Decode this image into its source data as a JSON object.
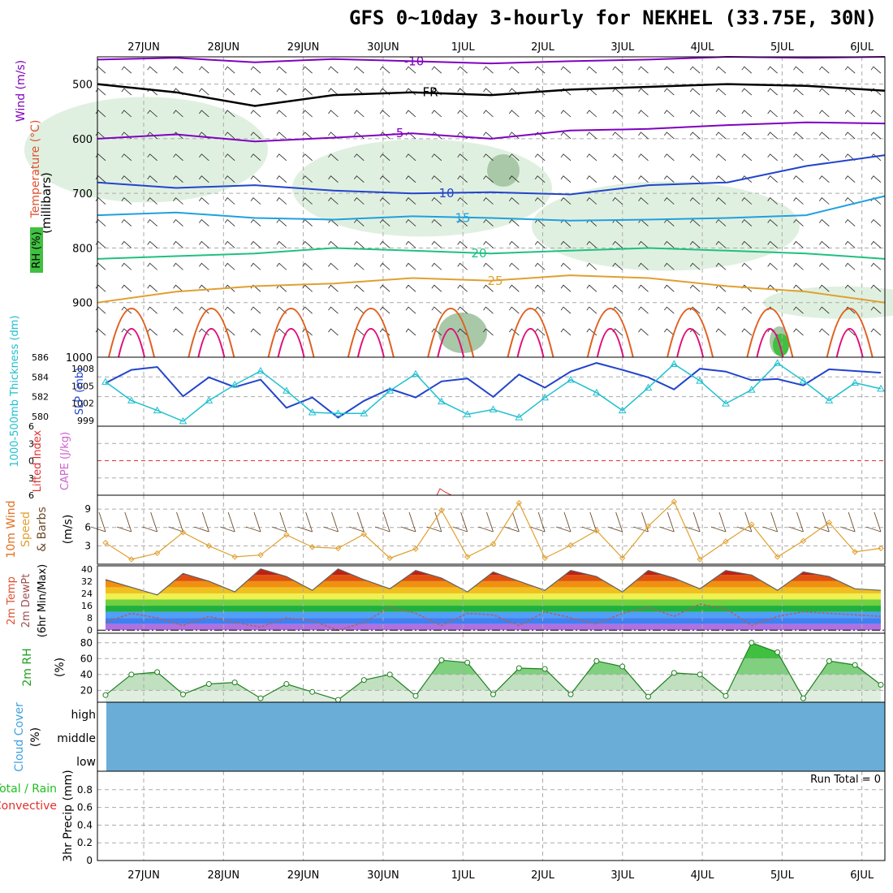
{
  "title": "GFS 0~10day 3-hourly for NEKHEL (33.75E, 30N)",
  "colors": {
    "purple": "#8000c0",
    "blue": "#2244cc",
    "lightblue": "#20a0e0",
    "green": "#20c080",
    "orange": "#e0a030",
    "darkorange": "#e06020",
    "magenta": "#e0107a",
    "cyan": "#20c0d0",
    "rhfill": "#d8ecd8",
    "cloud": "#6aaed8",
    "grid": "#aaaaaa"
  },
  "chart_data": [
    {
      "type": "line",
      "panel": "upper-air cross-section",
      "ylabel": "(millibars)",
      "y_side_labels": [
        "Wind (m/s)",
        "Temperature (°C)",
        "RH (%)"
      ],
      "yticks": [
        500,
        600,
        700,
        800,
        900,
        1000
      ],
      "ylim": [
        1000,
        450
      ],
      "x_day_labels": [
        "27JUN",
        "28JUN",
        "29JUN",
        "30JUN",
        "1JUL",
        "2JUL",
        "3JUL",
        "4JUL",
        "5JUL",
        "6JUL"
      ],
      "isotherms": [
        {
          "name": "-5",
          "pressure": [
            600,
            592,
            605,
            598,
            590,
            600,
            585,
            582,
            575,
            570,
            572
          ]
        },
        {
          "name": "-10",
          "pressure": [
            455,
            452,
            460,
            454,
            458,
            462,
            458,
            455,
            450,
            452,
            450
          ]
        },
        {
          "name": "FR",
          "pressure": [
            500,
            515,
            540,
            520,
            515,
            520,
            510,
            505,
            500,
            503,
            512
          ]
        },
        {
          "name": "10",
          "pressure": [
            680,
            690,
            685,
            695,
            700,
            698,
            702,
            685,
            680,
            650,
            630
          ]
        },
        {
          "name": "15",
          "pressure": [
            740,
            735,
            745,
            748,
            742,
            745,
            750,
            748,
            745,
            740,
            705
          ]
        },
        {
          "name": "20",
          "pressure": [
            820,
            815,
            810,
            800,
            805,
            810,
            805,
            800,
            805,
            810,
            820
          ]
        },
        {
          "name": "25",
          "pressure": [
            900,
            880,
            870,
            865,
            855,
            860,
            850,
            855,
            870,
            880,
            900
          ]
        }
      ]
    },
    {
      "type": "line",
      "panel": "thickness-slp",
      "y_side_labels": [
        "1000-500mb Thickness (dm)",
        "SLP (mb)"
      ],
      "thickness_ticks": [
        580,
        582,
        584,
        586
      ],
      "slp_ticks": [
        999,
        1002,
        1005,
        1008
      ],
      "slp": [
        1005.5,
        1007.8,
        1008.3,
        1003.2,
        1006.5,
        1004.8,
        1006.1,
        1001.2,
        1003.0,
        999.5,
        1002.4,
        1004.5,
        1003.0,
        1005.8,
        1006.3,
        1003.1,
        1007.0,
        1004.7,
        1007.5,
        1009.0,
        1007.8,
        1006.5,
        1004.4,
        1008.0,
        1007.5,
        1006.0,
        1006.2,
        1005.1,
        1007.9,
        1007.6,
        1007.3
      ],
      "thickness": [
        583.5,
        581.6,
        580.6,
        579.5,
        581.6,
        583.2,
        584.6,
        582.6,
        580.4,
        580.3,
        580.3,
        582.6,
        584.3,
        581.5,
        580.2,
        580.7,
        579.9,
        581.9,
        583.7,
        582.4,
        580.6,
        582.9,
        585.3,
        583.6,
        581.3,
        582.7,
        585.4,
        583.6,
        581.6,
        583.4,
        582.8
      ]
    },
    {
      "type": "line",
      "panel": "lifted-index-cape",
      "y_side_labels": [
        "Lifted Index",
        "CAPE (J/kg)"
      ],
      "yticks": [
        -6,
        -3,
        0,
        3,
        6
      ],
      "cape": [
        0,
        0,
        0,
        0,
        0,
        0,
        0,
        0,
        0,
        0,
        0,
        0,
        0,
        0,
        0,
        0,
        0,
        0,
        0,
        0,
        0,
        0,
        0,
        0,
        0,
        0,
        0,
        0,
        0,
        0,
        0
      ]
    },
    {
      "type": "line",
      "panel": "10m-wind",
      "y_side_labels": [
        "10m Wind Speed & Barbs",
        "(m/s)"
      ],
      "yticks": [
        3,
        6,
        9
      ],
      "values": [
        3.5,
        0.8,
        1.8,
        5.2,
        3.0,
        1.2,
        1.5,
        4.8,
        2.8,
        2.6,
        4.9,
        1.0,
        2.5,
        8.8,
        1.2,
        3.3,
        10.0,
        1.0,
        3.1,
        5.5,
        1.0,
        6.2,
        10.2,
        0.8,
        3.7,
        6.5,
        1.2,
        3.8,
        6.8,
        2.0,
        2.6
      ]
    },
    {
      "type": "area",
      "panel": "2m-temp-dewpoint",
      "y_side_labels": [
        "2m Temp",
        "2m DewPt",
        "(6hr Min/Max)"
      ],
      "yticks": [
        0,
        8,
        16,
        24,
        32,
        40
      ],
      "temp": [
        33,
        28,
        23,
        37,
        32,
        25,
        40,
        35,
        26,
        40,
        33,
        27,
        39,
        34,
        25,
        38,
        32,
        26,
        39,
        35,
        25,
        39,
        34,
        27,
        39,
        36,
        26,
        38,
        35,
        27,
        26
      ],
      "dewpoint": [
        5,
        11,
        8,
        3,
        9,
        5,
        2,
        8,
        6,
        0,
        5,
        15,
        11,
        3,
        11,
        10,
        3,
        12,
        8,
        4,
        11,
        15,
        9,
        17,
        14,
        3,
        9,
        12,
        11,
        10,
        9
      ]
    },
    {
      "type": "area",
      "panel": "2m-rh",
      "y_side_labels": [
        "2m RH",
        "(%)"
      ],
      "yticks": [
        20,
        40,
        60,
        80
      ],
      "values": [
        14,
        40,
        43,
        15,
        28,
        30,
        10,
        28,
        18,
        8,
        33,
        40,
        13,
        58,
        55,
        15,
        48,
        47,
        15,
        57,
        50,
        12,
        42,
        40,
        13,
        80,
        68,
        10,
        57,
        52,
        27
      ]
    },
    {
      "type": "area",
      "panel": "cloud-cover",
      "y_side_labels": [
        "Cloud Cover",
        "(%)"
      ],
      "levels": [
        "high",
        "middle",
        "low"
      ]
    },
    {
      "type": "bar",
      "panel": "precip",
      "y_side_labels": [
        "Total / Rain",
        "Convective",
        "3hr Precip (mm)"
      ],
      "yticks": [
        0,
        0.2,
        0.4,
        0.6,
        0.8
      ],
      "run_total": "Run Total = 0",
      "values": [
        0,
        0,
        0,
        0,
        0,
        0,
        0,
        0,
        0,
        0,
        0,
        0,
        0,
        0,
        0,
        0,
        0,
        0,
        0,
        0,
        0,
        0,
        0,
        0,
        0,
        0,
        0,
        0,
        0,
        0,
        0
      ]
    }
  ]
}
